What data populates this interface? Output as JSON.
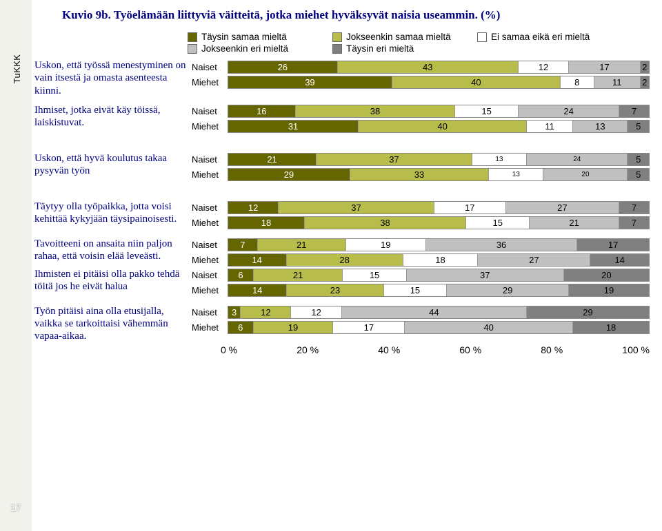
{
  "title": "Kuvio 9b. Työelämään liittyviä väitteitä, jotka miehet hyväksyvät naisia useammin. (%)",
  "page_number": "17",
  "legend": {
    "r1c1": "Täysin samaa mieltä",
    "r1c2": "Jokseenkin samaa mieltä",
    "r1c3": "Ei samaa eikä eri mieltä",
    "r2c1": "Jokseenkin eri mieltä",
    "r2c2": "Täysin eri mieltä"
  },
  "colors": {
    "c1": "#666600",
    "c2": "#b8bc4b",
    "c3": "#ffffff",
    "c4": "#c0c0c0",
    "c5": "#808080",
    "bg": "#ffffff",
    "text_blue": "#000080"
  },
  "row_labels": {
    "naiset": "Naiset",
    "miehet": "Miehet"
  },
  "axis": {
    "t0": "0 %",
    "t1": "20 %",
    "t2": "40 %",
    "t3": "60 %",
    "t4": "80 %",
    "t5": "100 %"
  },
  "questions": [
    {
      "label": "Uskon, että työssä menestyminen on vain itsestä ja omasta asenteesta kiinni.",
      "rows": [
        {
          "who": "naiset",
          "v": [
            26,
            43,
            12,
            17,
            2
          ]
        },
        {
          "who": "miehet",
          "v": [
            39,
            40,
            8,
            11,
            2
          ]
        }
      ],
      "spacer": "normal"
    },
    {
      "label": "Ihmiset, jotka eivät käy töissä, laiskistuvat.",
      "rows": [
        {
          "who": "naiset",
          "v": [
            16,
            38,
            15,
            24,
            7
          ]
        },
        {
          "who": "miehet",
          "v": [
            31,
            40,
            11,
            13,
            5
          ]
        }
      ],
      "spacer": "big"
    },
    {
      "label": "Uskon, että hyvä koulutus takaa pysyvän työn",
      "rows": [
        {
          "who": "naiset",
          "v": [
            21,
            37,
            13,
            24,
            5
          ],
          "small_idx": [
            2,
            3
          ]
        },
        {
          "who": "miehet",
          "v": [
            29,
            33,
            13,
            20,
            5
          ],
          "small_idx": [
            2,
            3
          ]
        }
      ],
      "spacer": "big"
    },
    {
      "label": "Täytyy olla työpaikka, jotta voisi kehittää kykyjään täysipainoisesti.",
      "rows": [
        {
          "who": "naiset",
          "v": [
            12,
            37,
            17,
            27,
            7
          ]
        },
        {
          "who": "miehet",
          "v": [
            18,
            38,
            15,
            21,
            7
          ]
        }
      ],
      "spacer": "normal"
    },
    {
      "label": "Tavoitteeni on ansaita niin paljon rahaa, että voisin elää leveästi.",
      "rows": [
        {
          "who": "naiset",
          "v": [
            7,
            21,
            19,
            36,
            17
          ]
        },
        {
          "who": "miehet",
          "v": [
            14,
            28,
            18,
            27,
            14
          ]
        }
      ],
      "spacer": "none"
    },
    {
      "label": "Ihmisten ei pitäisi olla pakko tehdä töitä jos he eivät halua",
      "rows": [
        {
          "who": "naiset",
          "v": [
            6,
            21,
            15,
            37,
            20
          ]
        },
        {
          "who": "miehet",
          "v": [
            14,
            23,
            15,
            29,
            19
          ]
        }
      ],
      "spacer": "normal"
    },
    {
      "label": "Työn pitäisi aina olla etusijalla, vaikka se tarkoittaisi vähemmän vapaa-aikaa.",
      "rows": [
        {
          "who": "naiset",
          "v": [
            3,
            12,
            12,
            44,
            29
          ]
        },
        {
          "who": "miehet",
          "v": [
            6,
            19,
            17,
            40,
            18
          ]
        }
      ],
      "spacer": "none"
    }
  ]
}
